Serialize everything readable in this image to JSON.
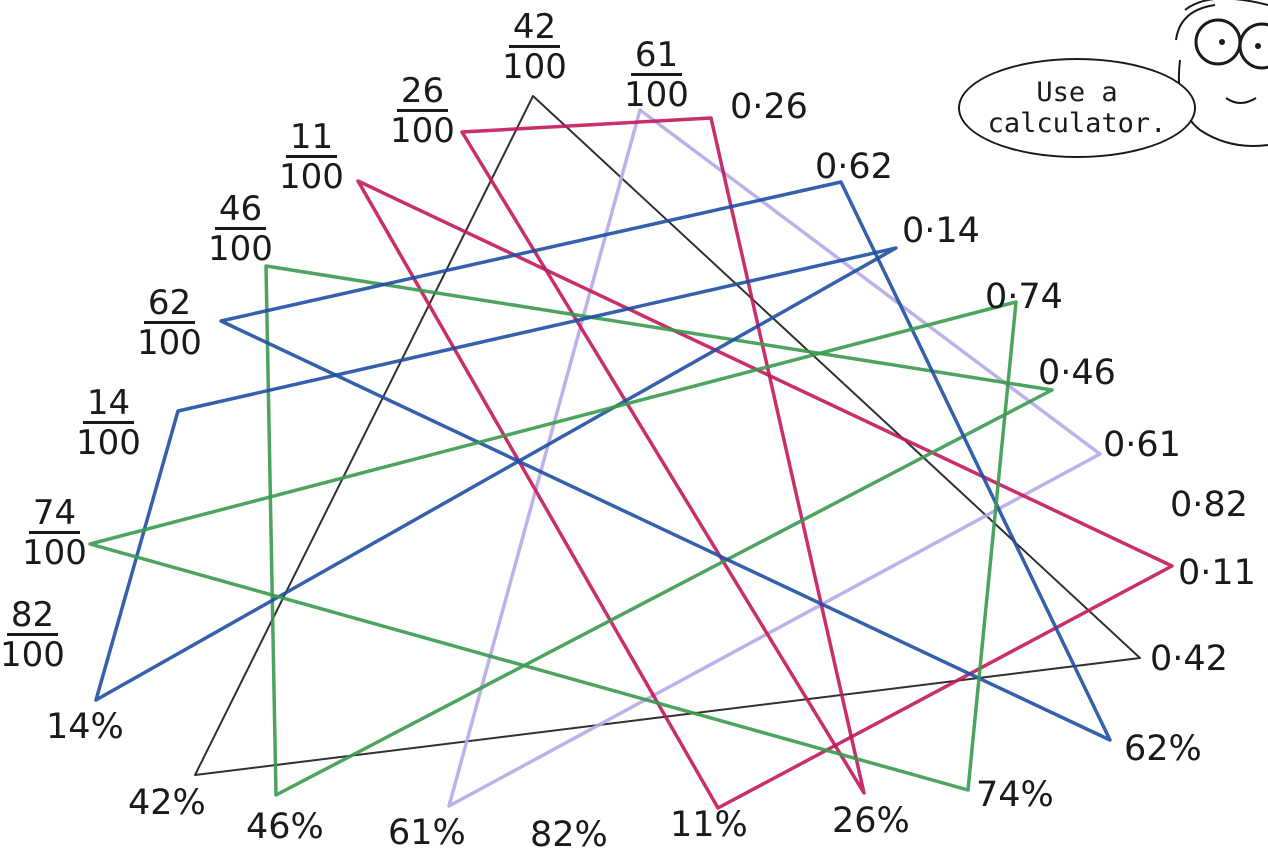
{
  "fractions": [
    {
      "id": "f42",
      "num": "42",
      "den": "100",
      "match": "42"
    },
    {
      "id": "f61",
      "num": "61",
      "den": "100",
      "match": "61"
    },
    {
      "id": "f26",
      "num": "26",
      "den": "100",
      "match": "26"
    },
    {
      "id": "f11",
      "num": "11",
      "den": "100",
      "match": "11"
    },
    {
      "id": "f46",
      "num": "46",
      "den": "100",
      "match": "46"
    },
    {
      "id": "f62",
      "num": "62",
      "den": "100",
      "match": "62"
    },
    {
      "id": "f14",
      "num": "14",
      "den": "100",
      "match": "14"
    },
    {
      "id": "f74",
      "num": "74",
      "den": "100",
      "match": "74"
    },
    {
      "id": "f82",
      "num": "82",
      "den": "100",
      "match": "82"
    }
  ],
  "decimals": [
    {
      "id": "d26",
      "text": "0·26",
      "match": "26"
    },
    {
      "id": "d62",
      "text": "0·62",
      "match": "62"
    },
    {
      "id": "d14",
      "text": "0·14",
      "match": "14"
    },
    {
      "id": "d74",
      "text": "0·74",
      "match": "74"
    },
    {
      "id": "d46",
      "text": "0·46",
      "match": "46"
    },
    {
      "id": "d61",
      "text": "0·61",
      "match": "61"
    },
    {
      "id": "d82",
      "text": "0·82",
      "match": "82"
    },
    {
      "id": "d11",
      "text": "0·11",
      "match": "11"
    },
    {
      "id": "d42",
      "text": "0·42",
      "match": "42"
    }
  ],
  "percents": [
    {
      "id": "p14",
      "text": "14%",
      "match": "14"
    },
    {
      "id": "p42",
      "text": "42%",
      "match": "42"
    },
    {
      "id": "p46",
      "text": "46%",
      "match": "46"
    },
    {
      "id": "p61",
      "text": "61%",
      "match": "61"
    },
    {
      "id": "p82",
      "text": "82%",
      "match": "82"
    },
    {
      "id": "p11",
      "text": "11%",
      "match": "11"
    },
    {
      "id": "p26",
      "text": "26%",
      "match": "26"
    },
    {
      "id": "p74",
      "text": "74%",
      "match": "74"
    },
    {
      "id": "p62",
      "text": "62%",
      "match": "62"
    }
  ],
  "connections": [
    {
      "value": "42",
      "color": "#1a1a1a"
    },
    {
      "value": "61",
      "color": "#b7a8e8"
    },
    {
      "value": "26",
      "color": "#c2185b"
    },
    {
      "value": "11",
      "color": "#c2185b"
    },
    {
      "value": "46",
      "color": "#3a9a4e"
    },
    {
      "value": "62",
      "color": "#1f4fa3"
    },
    {
      "value": "14",
      "color": "#1f4fa3"
    },
    {
      "value": "74",
      "color": "#3a9a4e"
    }
  ],
  "speech_bubble": {
    "line1": "Use a",
    "line2": "calculator."
  }
}
